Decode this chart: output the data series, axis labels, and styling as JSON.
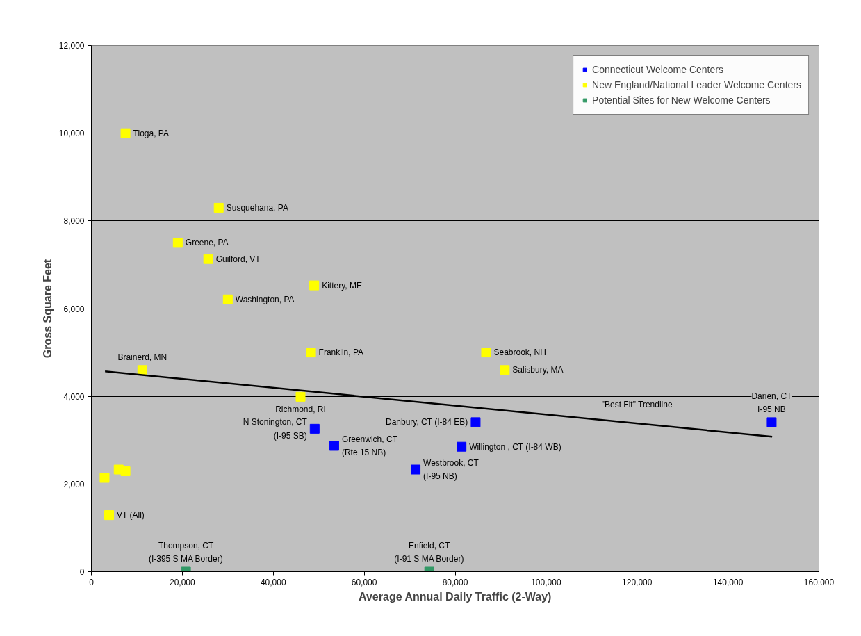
{
  "chart_data": {
    "type": "scatter",
    "xlabel": "Average Annual Daily Traffic (2-Way)",
    "ylabel": "Gross Square Feet",
    "xlim": [
      0,
      160000
    ],
    "ylim": [
      0,
      12000
    ],
    "xticks": [
      {
        "value": 0,
        "label": "0"
      },
      {
        "value": 20000,
        "label": "20,000"
      },
      {
        "value": 40000,
        "label": "40,000"
      },
      {
        "value": 60000,
        "label": "60,000"
      },
      {
        "value": 80000,
        "label": "80,000"
      },
      {
        "value": 100000,
        "label": "100,000"
      },
      {
        "value": 120000,
        "label": "120,000"
      },
      {
        "value": 140000,
        "label": "140,000"
      },
      {
        "value": 160000,
        "label": "160,000"
      }
    ],
    "yticks": [
      {
        "value": 0,
        "label": "0"
      },
      {
        "value": 2000,
        "label": "2,000"
      },
      {
        "value": 4000,
        "label": "4,000"
      },
      {
        "value": 6000,
        "label": "6,000"
      },
      {
        "value": 8000,
        "label": "8,000"
      },
      {
        "value": 10000,
        "label": "10,000"
      },
      {
        "value": 12000,
        "label": "12,000"
      }
    ],
    "grid": "y",
    "legend": "top right",
    "marker": "square",
    "series": [
      {
        "name": "Connecticut Welcome Centers",
        "color": "#0000ff",
        "x": [
          49100,
          53400,
          71300,
          84500,
          81400,
          149600
        ],
        "values": [
          3260,
          2870,
          2330,
          3410,
          2850,
          3410
        ]
      },
      {
        "name": "New England/National Leader Welcome Centers",
        "color": "#ffff00",
        "x": [
          7500,
          28000,
          19000,
          25700,
          49000,
          30000,
          48300,
          11200,
          46000,
          86800,
          90900,
          2900,
          6000,
          7500,
          3900
        ],
        "values": [
          10000,
          8300,
          7500,
          7130,
          6530,
          6210,
          5000,
          4600,
          3990,
          5000,
          4600,
          2140,
          2330,
          2290,
          1290
        ]
      },
      {
        "name": "Potential Sites for New Welcome Centers",
        "color": "#339966",
        "x": [
          20800,
          74300
        ],
        "values": [
          0,
          0
        ]
      },
      {
        "type": "line",
        "marker": "none",
        "color": "#000000",
        "x": [
          3000,
          149700
        ],
        "values": [
          4570,
          3080
        ]
      }
    ],
    "annotations": [
      {
        "text": "Tioga, PA",
        "x": 7500,
        "y": 10000
      },
      {
        "text": "Susquehana, PA",
        "x": 28000,
        "y": 8300
      },
      {
        "text": "Greene, PA",
        "x": 19000,
        "y": 7500
      },
      {
        "text": "Guilford, VT",
        "x": 25700,
        "y": 7130
      },
      {
        "text": "Kittery, ME",
        "x": 49000,
        "y": 6530
      },
      {
        "text": "Washington, PA",
        "x": 30000,
        "y": 6210
      },
      {
        "text": "Franklin, PA",
        "x": 48300,
        "y": 5000
      },
      {
        "text": "Brainerd, MN",
        "x": 11200,
        "y": 4600
      },
      {
        "text": "Richmond, RI",
        "x": 46000,
        "y": 3990
      },
      {
        "text": "N Stonington, CT\n(I-95 SB)",
        "x": 49100,
        "y": 3260
      },
      {
        "text": "Greenwich, CT\n(Rte 15 NB)",
        "x": 53400,
        "y": 2870
      },
      {
        "text": "Westbrook, CT\n(I-95 NB)",
        "x": 71300,
        "y": 2330
      },
      {
        "text": "VT (All)",
        "x": 3900,
        "y": 1290
      },
      {
        "text": "Thompson, CT\n(I-395 S MA Border)",
        "x": 20800,
        "y": 0
      },
      {
        "text": "Enfield, CT\n(I-91 S MA Border)",
        "x": 74300,
        "y": 0
      },
      {
        "text": "Seabrook, NH",
        "x": 86800,
        "y": 5000
      },
      {
        "text": "Salisbury, MA",
        "x": 90900,
        "y": 4600
      },
      {
        "text": "Danbury, CT (I-84 EB)",
        "x": 84500,
        "y": 3410
      },
      {
        "text": "Willington , CT (I-84 WB)",
        "x": 81400,
        "y": 2850
      },
      {
        "text": "Darien, CT\nI-95 NB",
        "x": 149600,
        "y": 3410
      },
      {
        "text": "\"Best Fit\" Trendline",
        "x": 120000,
        "y": 3380
      }
    ]
  }
}
